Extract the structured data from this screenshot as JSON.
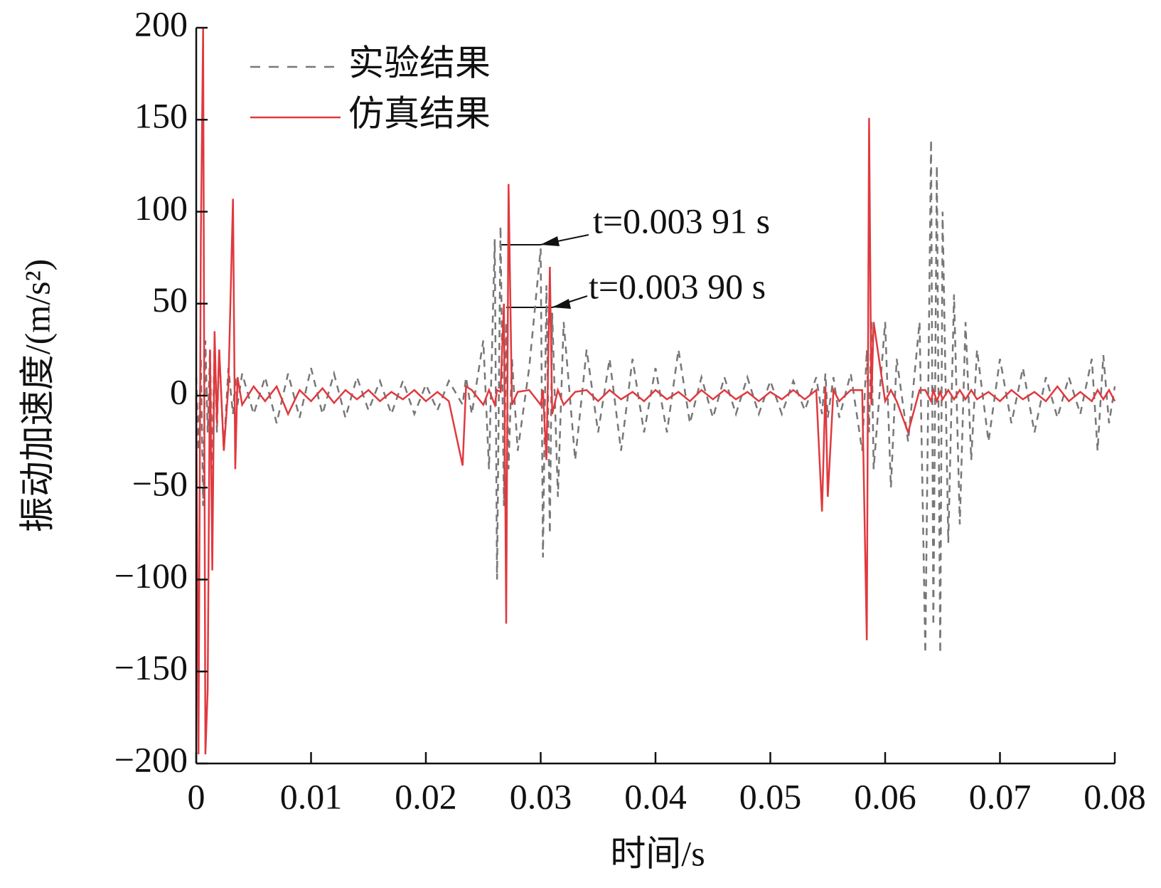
{
  "chart_data": {
    "type": "line",
    "xlabel": "时间/s",
    "ylabel": "振动加速度/(m/s²)",
    "annotations": [
      "t=0.003 91 s",
      "t=0.003 90 s"
    ],
    "legend": "top-left",
    "xlim": [
      0,
      0.08
    ],
    "xticks": [
      0,
      0.01,
      0.02,
      0.03,
      0.04,
      0.05,
      0.06,
      0.07,
      0.08
    ],
    "ylim": [
      -200,
      200
    ],
    "yticks": [
      {
        "value": -200,
        "label": "−200"
      },
      {
        "value": -150,
        "label": "−150"
      },
      {
        "value": -100,
        "label": "−100"
      },
      {
        "value": -50,
        "label": "−50"
      },
      0,
      50,
      100,
      150,
      200
    ],
    "x": [
      0,
      0.0002,
      0.0004,
      0.0006,
      0.0008,
      0.001,
      0.0012,
      0.0014,
      0.0016,
      0.0018,
      0.002,
      0.0024,
      0.0028,
      0.0032,
      0.0034,
      0.0036,
      0.004,
      0.005,
      0.006,
      0.007,
      0.008,
      0.009,
      0.01,
      0.011,
      0.012,
      0.013,
      0.014,
      0.015,
      0.016,
      0.017,
      0.018,
      0.019,
      0.02,
      0.021,
      0.022,
      0.0232,
      0.0235,
      0.024,
      0.025,
      0.0255,
      0.026,
      0.0262,
      0.0265,
      0.0268,
      0.027,
      0.0272,
      0.0275,
      0.028,
      0.029,
      0.03,
      0.0302,
      0.0305,
      0.0308,
      0.031,
      0.0315,
      0.032,
      0.033,
      0.034,
      0.035,
      0.036,
      0.037,
      0.038,
      0.039,
      0.04,
      0.041,
      0.042,
      0.043,
      0.044,
      0.045,
      0.046,
      0.047,
      0.048,
      0.049,
      0.05,
      0.051,
      0.052,
      0.053,
      0.054,
      0.0545,
      0.0548,
      0.055,
      0.0555,
      0.056,
      0.057,
      0.058,
      0.0584,
      0.0586,
      0.0588,
      0.059,
      0.06,
      0.0605,
      0.061,
      0.062,
      0.063,
      0.0635,
      0.064,
      0.0642,
      0.0645,
      0.0648,
      0.065,
      0.0655,
      0.066,
      0.0665,
      0.067,
      0.0675,
      0.068,
      0.069,
      0.07,
      0.071,
      0.072,
      0.073,
      0.074,
      0.075,
      0.076,
      0.077,
      0.078,
      0.0785,
      0.079,
      0.0795,
      0.08
    ],
    "series": [
      {
        "name": "实验结果",
        "color": "#777777",
        "dash": true,
        "values": [
          10,
          -30,
          20,
          -60,
          30,
          -20,
          25,
          -40,
          30,
          -20,
          25,
          -30,
          15,
          -10,
          10,
          -5,
          12,
          -10,
          10,
          -15,
          12,
          -12,
          15,
          -10,
          12,
          -12,
          10,
          -8,
          8,
          -10,
          8,
          -10,
          6,
          -8,
          8,
          -5,
          10,
          -10,
          30,
          -40,
          85,
          -100,
          92,
          -60,
          40,
          -40,
          20,
          -30,
          15,
          80,
          -88,
          60,
          -75,
          45,
          -55,
          40,
          -35,
          25,
          -20,
          20,
          -30,
          20,
          -20,
          15,
          -20,
          25,
          -15,
          10,
          -12,
          10,
          -10,
          10,
          -10,
          8,
          -10,
          8,
          -8,
          10,
          -10,
          12,
          -12,
          10,
          -12,
          12,
          -30,
          25,
          -20,
          40,
          -40,
          40,
          -50,
          20,
          -25,
          40,
          -140,
          139,
          -125,
          125,
          -140,
          100,
          -80,
          55,
          -70,
          40,
          -35,
          25,
          -25,
          20,
          -15,
          15,
          -20,
          10,
          -12,
          10,
          -10,
          20,
          -30,
          22,
          -15,
          5
        ]
      },
      {
        "name": "仿真结果",
        "color": "#e0393e",
        "dash": false,
        "values": [
          0,
          -195,
          85,
          200,
          -195,
          -160,
          25,
          -95,
          35,
          -15,
          25,
          -30,
          5,
          107,
          -40,
          10,
          -5,
          5,
          -3,
          5,
          -10,
          3,
          -3,
          4,
          -4,
          3,
          -2,
          3,
          -3,
          2,
          -2,
          3,
          -3,
          2,
          -3,
          -38,
          5,
          3,
          -5,
          3,
          -5,
          3,
          2,
          50,
          -124,
          115,
          -5,
          2,
          3,
          -5,
          3,
          -35,
          70,
          -10,
          3,
          -5,
          2,
          3,
          -3,
          3,
          -2,
          2,
          -3,
          3,
          -2,
          2,
          -3,
          3,
          -2,
          3,
          -2,
          2,
          -3,
          2,
          -2,
          3,
          -2,
          3,
          -63,
          5,
          -55,
          3,
          -3,
          3,
          3,
          -133,
          151,
          -5,
          40,
          -3,
          3,
          -3,
          -20,
          3,
          3,
          -3,
          3,
          -3,
          2,
          -2,
          3,
          -2,
          3,
          -2,
          3,
          -2,
          2,
          -3,
          3,
          -2,
          2,
          -3,
          5,
          -3,
          2,
          -3,
          3,
          -2,
          3,
          -3
        ]
      }
    ]
  }
}
